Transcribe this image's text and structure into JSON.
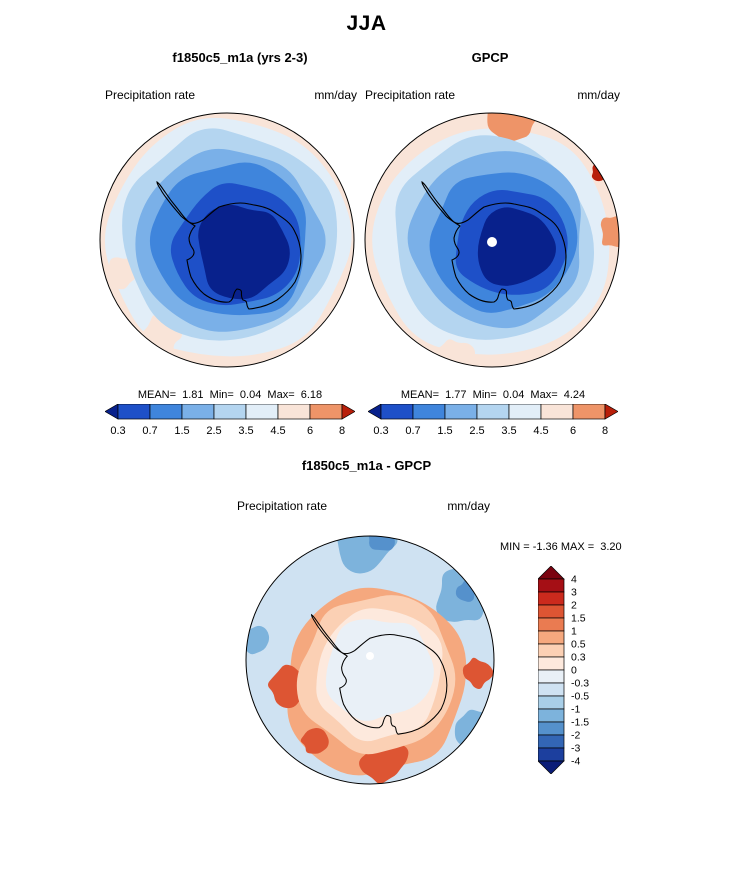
{
  "page_title": "JJA",
  "panels": {
    "model": {
      "title": "f1850c5_m1a (yrs 2-3)",
      "field_label": "Precipitation rate",
      "units": "mm/day",
      "stats_line": "MEAN=  1.81  Min=  0.04  Max=  6.18"
    },
    "obs": {
      "title": "GPCP",
      "field_label": "Precipitation rate",
      "units": "mm/day",
      "stats_line": "MEAN=  1.77  Min=  0.04  Max=  4.24"
    },
    "diff": {
      "title": "f1850c5_m1a - GPCP",
      "field_label": "Precipitation rate",
      "units": "mm/day",
      "minmax_line": "MIN = -1.36 MAX =  3.20"
    }
  },
  "chart_data": [
    {
      "type": "heatmap",
      "panel": "model",
      "title": "f1850c5_m1a (yrs 2-3)",
      "season": "JJA",
      "variable": "Precipitation rate",
      "units": "mm/day",
      "projection": "south-polar-stereographic",
      "stats": {
        "mean": 1.81,
        "min": 0.04,
        "max": 6.18
      },
      "levels": [
        0.3,
        0.7,
        1.5,
        2.5,
        3.5,
        4.5,
        6,
        8
      ],
      "tick_labels": [
        "0.3",
        "0.7",
        "1.5",
        "2.5",
        "3.5",
        "4.5",
        "6",
        "8"
      ],
      "palette": [
        "#08218c",
        "#1e50c8",
        "#3f85dc",
        "#7ab0e8",
        "#b4d5f0",
        "#e2eef8",
        "#f9e4d8",
        "#ee9468",
        "#b81f0a"
      ],
      "legend_position": "bottom",
      "description": "Precipitation minimum (<0.3 mm/day, dark navy) over the Antarctic interior, increasing outward through blues to pale pink (2.5-4.5 mm/day) over the surrounding Southern Ocean."
    },
    {
      "type": "heatmap",
      "panel": "obs",
      "title": "GPCP",
      "season": "JJA",
      "variable": "Precipitation rate",
      "units": "mm/day",
      "projection": "south-polar-stereographic",
      "stats": {
        "mean": 1.77,
        "min": 0.04,
        "max": 4.24
      },
      "levels": [
        0.3,
        0.7,
        1.5,
        2.5,
        3.5,
        4.5,
        6,
        8
      ],
      "tick_labels": [
        "0.3",
        "0.7",
        "1.5",
        "2.5",
        "3.5",
        "4.5",
        "6",
        "8"
      ],
      "palette": [
        "#08218c",
        "#1e50c8",
        "#3f85dc",
        "#7ab0e8",
        "#b4d5f0",
        "#e2eef8",
        "#f9e4d8",
        "#ee9468",
        "#b81f0a"
      ],
      "legend_position": "bottom",
      "description": "Observed GPCP precipitation: dark-blue dry interior over East Antarctica, salmon/red patches (>4.5 mm/day) at the northern edge of the domain; white dot marks the pole."
    },
    {
      "type": "heatmap",
      "panel": "difference",
      "title": "f1850c5_m1a - GPCP",
      "season": "JJA",
      "variable": "Precipitation rate",
      "units": "mm/day",
      "projection": "south-polar-stereographic",
      "stats": {
        "min": -1.36,
        "max": 3.2
      },
      "levels": [
        -4,
        -3,
        -2,
        -1.5,
        -1,
        -0.5,
        -0.3,
        0,
        0.3,
        0.5,
        1,
        1.5,
        2,
        3,
        4
      ],
      "tick_labels_top_to_bottom": [
        "4",
        "3",
        "2",
        "1.5",
        "1",
        "0.5",
        "0.3",
        "0",
        "-0.3",
        "-0.5",
        "-1",
        "-1.5",
        "-2",
        "-3",
        "-4"
      ],
      "palette_top_to_bottom": [
        "#7a0310",
        "#a50f15",
        "#cb2a1d",
        "#dd5533",
        "#ea7b51",
        "#f5a87e",
        "#fbd0b4",
        "#fde9dd",
        "#e9f0f7",
        "#cfe2f2",
        "#a9cfe8",
        "#7db3dc",
        "#5591cc",
        "#3366b5",
        "#1c3f9e",
        "#0b1d78"
      ],
      "legend_position": "right",
      "description": "Near-zero to weakly negative difference (pale blue/white) over the Antarctic interior, a ring of positive bias (orange/red, 0.3-2 mm/day) over the coastal ocean, and scattered negative differences (blue) farther north."
    }
  ]
}
